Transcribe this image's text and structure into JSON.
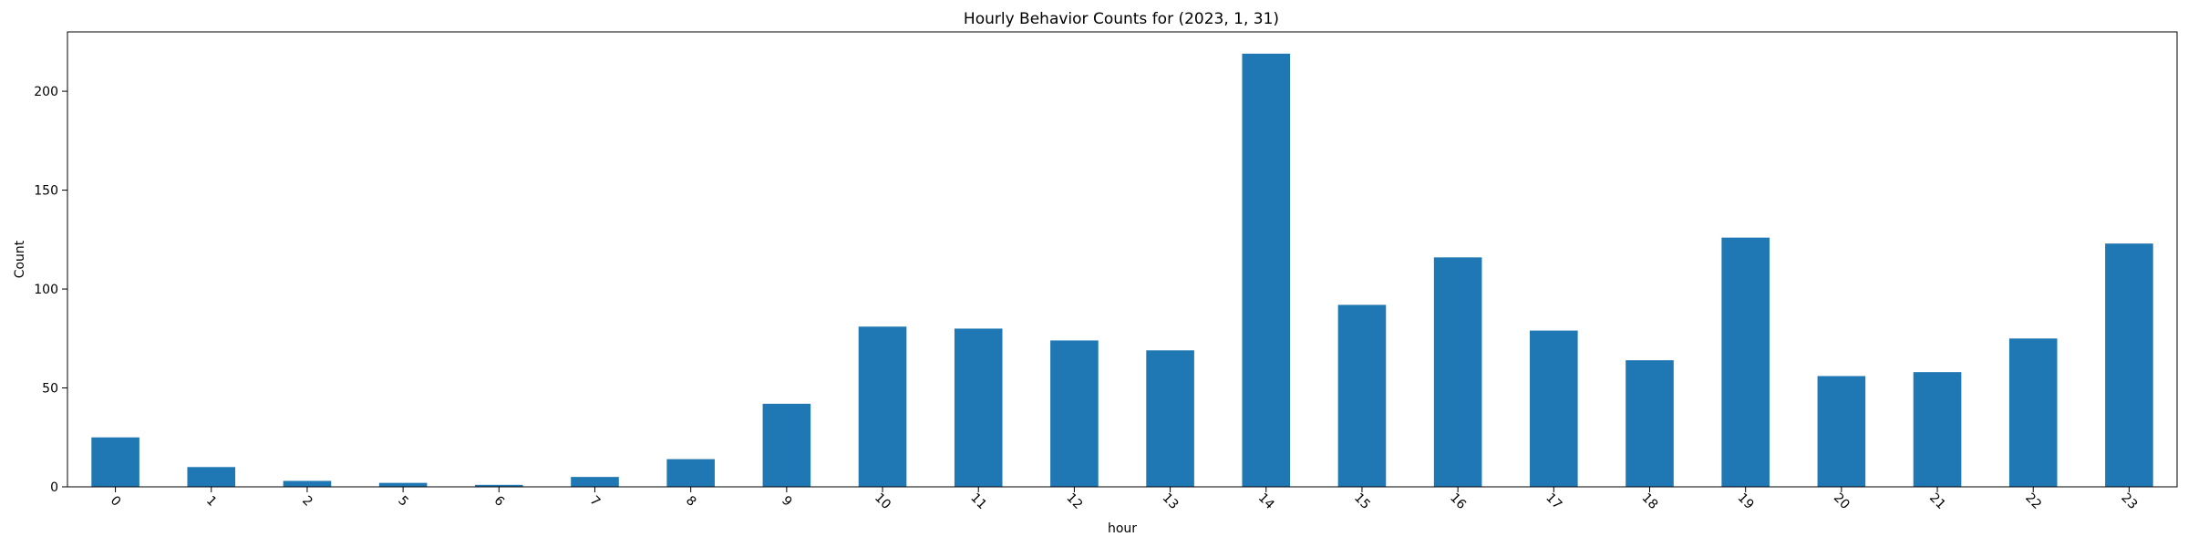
{
  "chart_data": {
    "type": "bar",
    "title": "Hourly Behavior Counts for (2023, 1, 31)",
    "xlabel": "hour",
    "ylabel": "Count",
    "categories": [
      "0",
      "1",
      "2",
      "5",
      "6",
      "7",
      "8",
      "9",
      "10",
      "11",
      "12",
      "13",
      "14",
      "15",
      "16",
      "17",
      "18",
      "19",
      "20",
      "21",
      "22",
      "23"
    ],
    "values": [
      25,
      10,
      3,
      2,
      1,
      5,
      14,
      42,
      81,
      80,
      74,
      69,
      219,
      92,
      116,
      79,
      64,
      126,
      56,
      58,
      75,
      123
    ],
    "ylim": [
      0,
      230
    ],
    "yticks": [
      0,
      50,
      100,
      150,
      200
    ],
    "bar_color": "#1f77b4",
    "xtick_rotation": "45",
    "legend": "none",
    "grid": false
  }
}
